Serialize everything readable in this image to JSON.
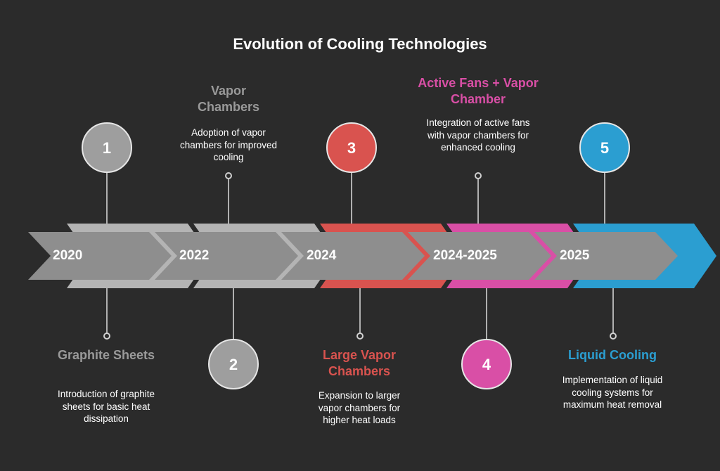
{
  "title": "Evolution of Cooling Technologies",
  "colors": {
    "background": "#2b2b2b",
    "arrow_fill": "#8e8e8e",
    "stage1": "#9e9e9e",
    "stage2": "#9e9e9e",
    "stage3": "#d9534f",
    "stage4": "#d94fa6",
    "stage5": "#2b9ed1"
  },
  "stages": [
    {
      "number": "1",
      "year": "2020",
      "label": "Graphite Sheets",
      "description": "Introduction of graphite sheets for basic heat dissipation",
      "position": "bottom"
    },
    {
      "number": "2",
      "year": "2022",
      "label": "Vapor Chambers",
      "description": "Adoption of vapor chambers for improved cooling",
      "position": "top"
    },
    {
      "number": "3",
      "year": "2024",
      "label": "Large Vapor Chambers",
      "description": "Expansion to larger vapor chambers for higher heat loads",
      "position": "bottom"
    },
    {
      "number": "4",
      "year": "2024-2025",
      "label": "Active Fans + Vapor Chamber",
      "description": "Integration of active fans with vapor chambers for enhanced cooling",
      "position": "top"
    },
    {
      "number": "5",
      "year": "2025",
      "label": "Liquid Cooling",
      "description": "Implementation of liquid cooling systems for maximum heat removal",
      "position": "bottom"
    }
  ]
}
